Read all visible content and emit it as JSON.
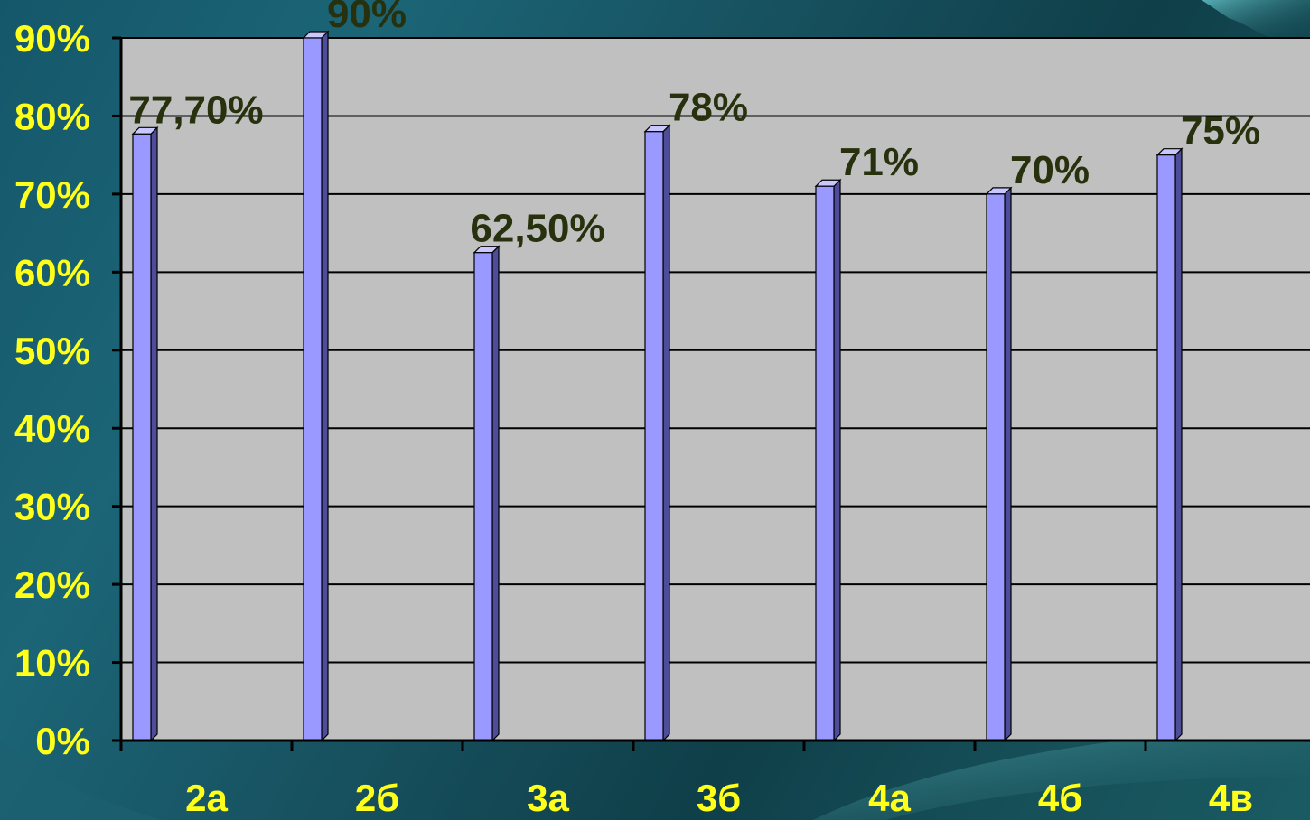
{
  "chart_data": {
    "type": "bar",
    "categories": [
      "2а",
      "2б",
      "3а",
      "3б",
      "4а",
      "4б",
      "4в"
    ],
    "values": [
      77.7,
      90,
      62.5,
      78,
      71,
      70,
      75
    ],
    "data_labels": [
      "77,70%",
      "90%",
      "62,50%",
      "78%",
      "71%",
      "70%",
      "75%"
    ],
    "y_ticks": [
      "0%",
      "10%",
      "20%",
      "30%",
      "40%",
      "50%",
      "60%",
      "70%",
      "80%",
      "90%"
    ],
    "ylim": [
      0,
      90
    ],
    "grid": true,
    "legend": "none",
    "title": "",
    "xlabel": "",
    "ylabel": ""
  },
  "colors": {
    "plot_background": "#c0c0c0",
    "gridline": "#000000",
    "bar_front": "#9999ff",
    "bar_side": "#4d4d99",
    "bar_top": "#c8c8ff",
    "tick_labels": "#ffff1a",
    "data_labels": "#27310d"
  }
}
